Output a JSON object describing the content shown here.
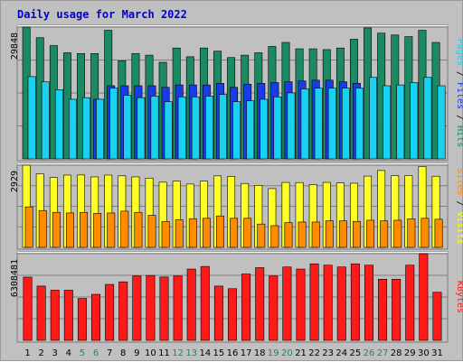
{
  "title": "Daily usage for March 2022",
  "colors": {
    "background": "#c0c0c0",
    "title": "#0000cc",
    "hits": "#1b8a63",
    "files": "#1a3be8",
    "pages": "#19d2f2",
    "visits": "#ffff24",
    "sites": "#ff8c00",
    "kbytes": "#ff1a1a",
    "weekend_label": "#1b8a63",
    "weekday_label": "#000000"
  },
  "chart_data": {
    "type": "bar",
    "title": "Daily usage for March 2022",
    "categories": [
      "1",
      "2",
      "3",
      "4",
      "5",
      "6",
      "7",
      "8",
      "9",
      "10",
      "11",
      "12",
      "13",
      "14",
      "15",
      "16",
      "17",
      "18",
      "19",
      "20",
      "21",
      "22",
      "23",
      "24",
      "25",
      "26",
      "27",
      "28",
      "29",
      "30",
      "31"
    ],
    "weekend_days": [
      "5",
      "6",
      "12",
      "13",
      "19",
      "20",
      "26",
      "27"
    ],
    "panels": [
      {
        "name": "hits_files_pages",
        "tick_label": "29848",
        "ylim": [
          0,
          29848
        ],
        "right_labels": [
          {
            "text": "Hits",
            "color_key": "hits"
          },
          {
            "text": "Files",
            "color_key": "files"
          },
          {
            "text": "Pages",
            "color_key": "pages"
          }
        ],
        "series": [
          {
            "name": "Hits",
            "color_key": "hits",
            "values": [
              29848,
              27450,
              25650,
              24030,
              23850,
              23850,
              29130,
              22230,
              23850,
              23490,
              21870,
              25110,
              23130,
              25110,
              24390,
              22950,
              23490,
              24030,
              25470,
              26370,
              24930,
              24930,
              24750,
              25110,
              27090,
              29670,
              28470,
              28050,
              27690,
              29130,
              26370
            ]
          },
          {
            "name": "Files",
            "color_key": "files",
            "values": [
              0,
              0,
              0,
              0,
              0,
              13500,
              16560,
              16560,
              16560,
              16560,
              16200,
              16740,
              16740,
              16740,
              17100,
              16200,
              16920,
              17100,
              17280,
              17460,
              17640,
              17820,
              17820,
              17460,
              17100,
              0,
              0,
              0,
              0,
              0,
              0
            ]
          },
          {
            "name": "Pages",
            "color_key": "pages",
            "values": [
              18630,
              17460,
              15660,
              13500,
              13860,
              13500,
              16020,
              14400,
              13860,
              14220,
              12960,
              14040,
              14040,
              14220,
              14580,
              12960,
              13140,
              13500,
              14040,
              14940,
              15840,
              16020,
              16020,
              16020,
              16020,
              18450,
              16560,
              16740,
              17280,
              18450,
              16560
            ]
          }
        ]
      },
      {
        "name": "visits_sites",
        "tick_label": "2929",
        "ylim": [
          0,
          2929
        ],
        "right_labels": [
          {
            "text": "Visits",
            "color_key": "visits"
          },
          {
            "text": "Sites",
            "color_key": "sites"
          }
        ],
        "series": [
          {
            "name": "Visits",
            "color_key": "visits",
            "values": [
              2929,
              2622,
              2491,
              2576,
              2580,
              2512,
              2576,
              2550,
              2512,
              2469,
              2323,
              2363,
              2257,
              2359,
              2548,
              2529,
              2278,
              2210,
              2095,
              2315,
              2311,
              2237,
              2316,
              2295,
              2286,
              2540,
              2740,
              2553,
              2561,
              2882,
              2535
            ]
          },
          {
            "name": "Sites",
            "color_key": "sites",
            "values": [
              1443,
              1312,
              1248,
              1226,
              1248,
              1211,
              1226,
              1290,
              1248,
              1143,
              920,
              987,
              1022,
              1036,
              1120,
              1036,
              1036,
              831,
              773,
              882,
              903,
              903,
              946,
              946,
              925,
              967,
              946,
              967,
              1016,
              1036,
              1002
            ]
          }
        ]
      },
      {
        "name": "kbytes",
        "tick_label": "6308481",
        "ylim": [
          0,
          6308481
        ],
        "right_labels": [
          {
            "text": "KBytes",
            "color_key": "kbytes"
          }
        ],
        "series": [
          {
            "name": "KBytes",
            "color_key": "kbytes",
            "values": [
              4600000,
              3950000,
              3650000,
              3650000,
              3050000,
              3350000,
              4070000,
              4260000,
              4680000,
              4720000,
              4610000,
              4680000,
              5190000,
              5380000,
              3950000,
              3760000,
              4830000,
              5290000,
              4680000,
              5340000,
              5190000,
              5570000,
              5470000,
              5340000,
              5570000,
              5470000,
              4450000,
              4450000,
              5470000,
              6308481,
              3500000
            ]
          }
        ]
      }
    ]
  }
}
